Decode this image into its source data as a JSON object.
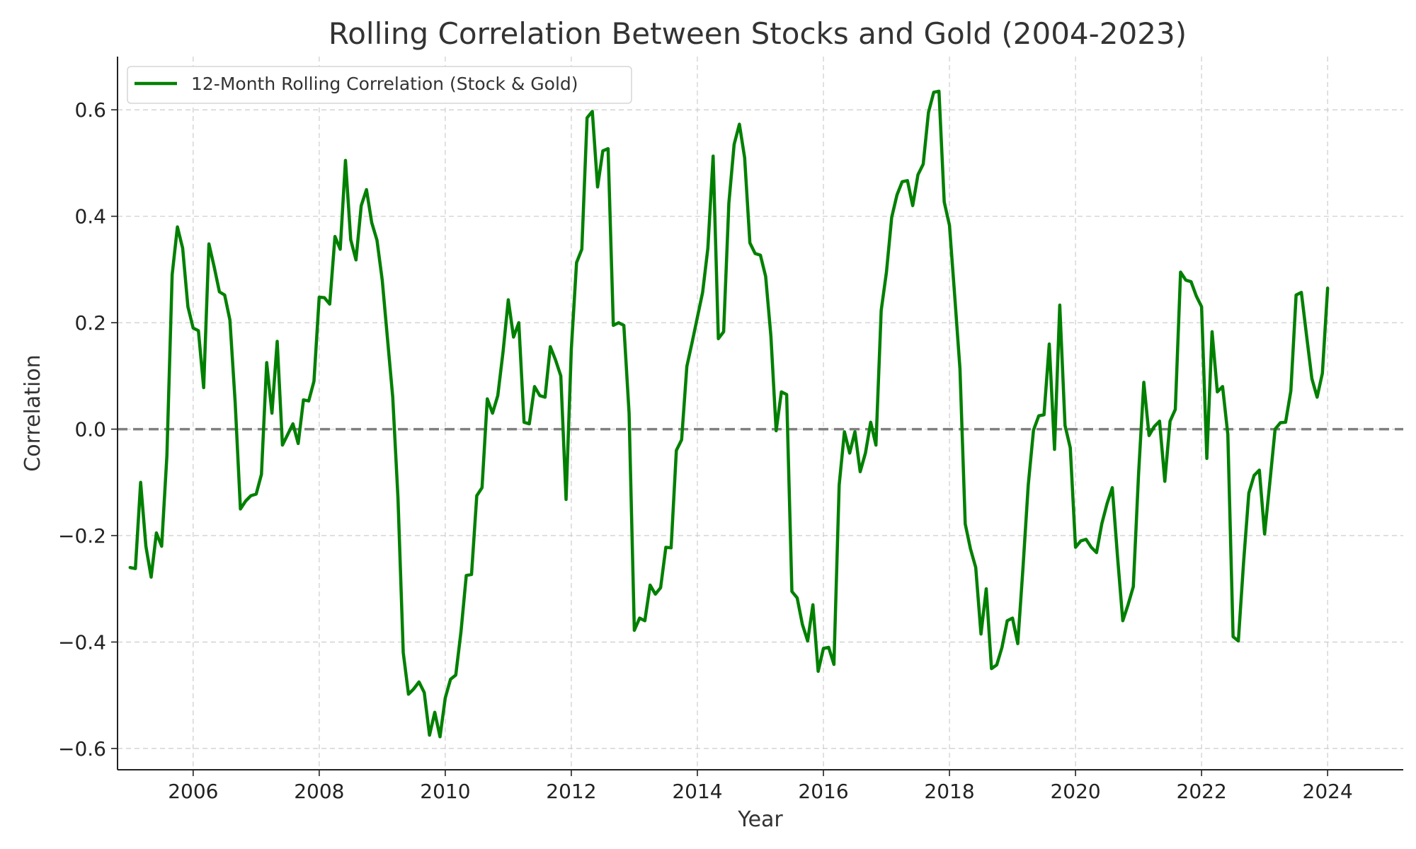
{
  "chart_data": {
    "type": "line",
    "title": "Rolling Correlation Between Stocks and Gold (2004-2023)",
    "xlabel": "Year",
    "ylabel": "Correlation",
    "xlim": [
      2004.8,
      2025.2
    ],
    "ylim": [
      -0.64,
      0.7
    ],
    "grid": true,
    "legend_position": "upper-left",
    "xticks": [
      2006,
      2008,
      2010,
      2012,
      2014,
      2016,
      2018,
      2020,
      2022,
      2024
    ],
    "xtick_labels": [
      "2006",
      "2008",
      "2010",
      "2012",
      "2014",
      "2016",
      "2018",
      "2020",
      "2022",
      "2024"
    ],
    "yticks": [
      -0.6,
      -0.4,
      -0.2,
      0.0,
      0.2,
      0.4,
      0.6
    ],
    "ytick_labels": [
      "−0.6",
      "−0.4",
      "−0.2",
      "0.0",
      "0.2",
      "0.4",
      "0.6"
    ],
    "reference_line": {
      "y": 0.0,
      "color": "#808080",
      "style": "dashed"
    },
    "series": [
      {
        "name": "12-Month Rolling Correlation (Stock & Gold)",
        "color": "#008000",
        "start": 2005.0,
        "step_months": 1,
        "values": [
          -0.26,
          -0.262,
          -0.1,
          -0.22,
          -0.278,
          -0.195,
          -0.22,
          -0.05,
          0.29,
          0.38,
          0.34,
          0.23,
          0.19,
          0.185,
          0.078,
          0.348,
          0.305,
          0.258,
          0.252,
          0.205,
          0.05,
          -0.15,
          -0.135,
          -0.125,
          -0.122,
          -0.085,
          0.125,
          0.03,
          0.165,
          -0.03,
          -0.01,
          0.01,
          -0.027,
          0.055,
          0.053,
          0.09,
          0.248,
          0.247,
          0.235,
          0.362,
          0.338,
          0.505,
          0.356,
          0.318,
          0.42,
          0.45,
          0.388,
          0.355,
          0.28,
          0.17,
          0.06,
          -0.13,
          -0.42,
          -0.498,
          -0.488,
          -0.475,
          -0.495,
          -0.575,
          -0.532,
          -0.578,
          -0.505,
          -0.47,
          -0.462,
          -0.38,
          -0.275,
          -0.273,
          -0.125,
          -0.11,
          0.057,
          0.03,
          0.063,
          0.145,
          0.243,
          0.173,
          0.2,
          0.013,
          0.01,
          0.08,
          0.063,
          0.06,
          0.155,
          0.13,
          0.1,
          -0.132,
          0.15,
          0.313,
          0.338,
          0.585,
          0.597,
          0.455,
          0.523,
          0.527,
          0.195,
          0.2,
          0.195,
          0.03,
          -0.378,
          -0.355,
          -0.36,
          -0.293,
          -0.31,
          -0.298,
          -0.222,
          -0.223,
          -0.04,
          -0.02,
          0.118,
          0.163,
          0.21,
          0.257,
          0.34,
          0.513,
          0.17,
          0.183,
          0.425,
          0.535,
          0.573,
          0.51,
          0.35,
          0.33,
          0.327,
          0.287,
          0.175,
          -0.003,
          0.07,
          0.065,
          -0.305,
          -0.317,
          -0.367,
          -0.398,
          -0.33,
          -0.455,
          -0.412,
          -0.41,
          -0.442,
          -0.105,
          -0.005,
          -0.045,
          -0.005,
          -0.08,
          -0.045,
          0.013,
          -0.03,
          0.223,
          0.295,
          0.398,
          0.44,
          0.465,
          0.467,
          0.42,
          0.478,
          0.498,
          0.595,
          0.633,
          0.635,
          0.427,
          0.383,
          0.25,
          0.113,
          -0.178,
          -0.225,
          -0.26,
          -0.385,
          -0.3,
          -0.45,
          -0.443,
          -0.41,
          -0.36,
          -0.355,
          -0.403,
          -0.26,
          -0.105,
          -0.002,
          0.025,
          0.027,
          0.16,
          -0.038,
          0.233,
          0.007,
          -0.035,
          -0.222,
          -0.21,
          -0.207,
          -0.222,
          -0.232,
          -0.178,
          -0.14,
          -0.11,
          -0.24,
          -0.36,
          -0.33,
          -0.296,
          -0.085,
          0.088,
          -0.012,
          0.005,
          0.015,
          -0.098,
          0.015,
          0.037,
          0.295,
          0.28,
          0.277,
          0.25,
          0.23,
          -0.055,
          0.183,
          0.07,
          0.08,
          -0.01,
          -0.39,
          -0.398,
          -0.25,
          -0.12,
          -0.087,
          -0.077,
          -0.197,
          -0.1,
          0.0,
          0.012,
          0.013,
          0.072,
          0.252,
          0.257,
          0.175,
          0.095,
          0.06,
          0.105,
          0.265
        ]
      }
    ]
  }
}
